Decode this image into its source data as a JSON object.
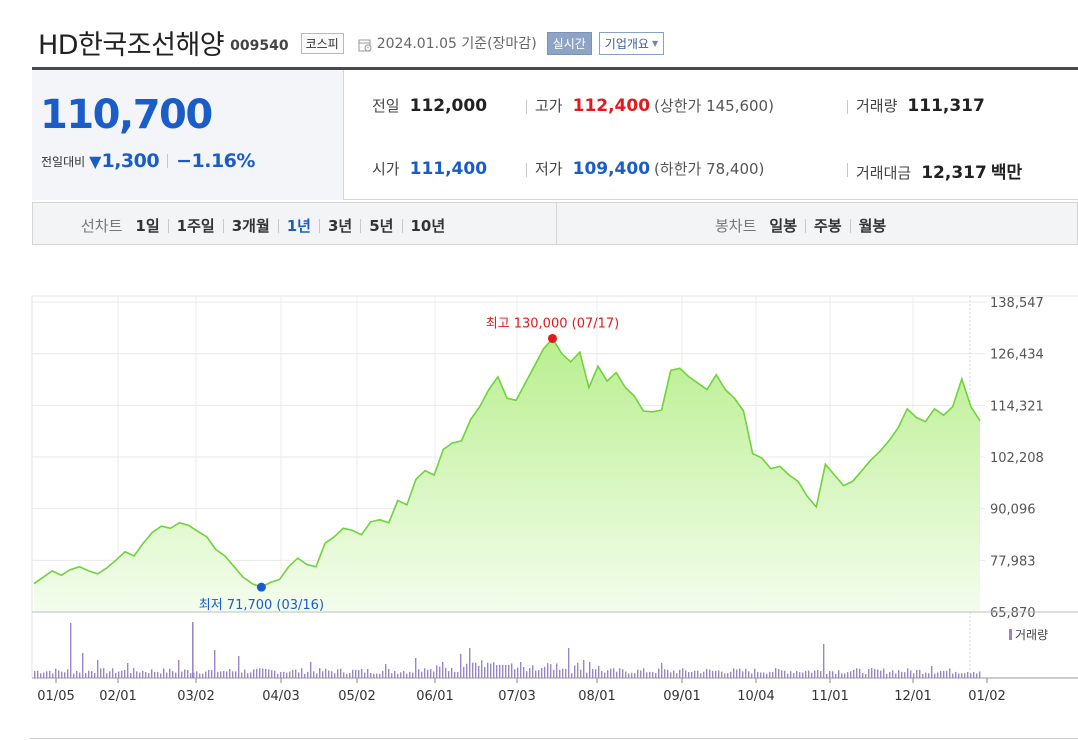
{
  "header": {
    "stock_name": "HD한국조선해양",
    "stock_code": "009540",
    "market": "코스피",
    "base_date": "2024.01.05 기준(장마감)",
    "realtime_label": "실시간",
    "company_info_label": "기업개요"
  },
  "price": {
    "current": "110,700",
    "change_label": "전일대비",
    "change_arrow": "▼",
    "change_value": "1,300",
    "change_rate": "−1.16%"
  },
  "stats": {
    "prev_close_label": "전일",
    "prev_close": "112,000",
    "high_label": "고가",
    "high": "112,400",
    "upper_limit": "(상한가 145,600)",
    "volume_label": "거래량",
    "volume": "111,317",
    "open_label": "시가",
    "open": "111,400",
    "low_label": "저가",
    "low": "109,400",
    "lower_limit": "(하한가 78,400)",
    "amount_label": "거래대금",
    "amount": "12,317",
    "amount_unit": "백만"
  },
  "tabs": {
    "line_label": "선차트",
    "line_items": [
      "1일",
      "1주일",
      "3개월",
      "1년",
      "3년",
      "5년",
      "10년"
    ],
    "active_index": 3,
    "candle_label": "봉차트",
    "candle_items": [
      "일봉",
      "주봉",
      "월봉"
    ]
  },
  "colors": {
    "line": "#6fd33a",
    "fill_top": "#b9ef8f",
    "fill_bottom": "#f4fdee",
    "accent_blue": "#1a5dc9",
    "accent_red": "#e21a1a",
    "volume_bar": "#9a86c6"
  },
  "chart_data": {
    "type": "area",
    "y_ticks": [
      "138,547",
      "126,434",
      "114,321",
      "102,208",
      "90,096",
      "77,983",
      "65,870"
    ],
    "ylim": [
      65870,
      138547
    ],
    "x_tick_labels": [
      "01/05",
      "02/01",
      "03/02",
      "04/03",
      "05/02",
      "06/01",
      "07/03",
      "08/01",
      "09/01",
      "10/04",
      "11/01",
      "12/01",
      "01/02"
    ],
    "high_annotation": "최고 130,000 (07/17)",
    "high_value": 130000,
    "low_annotation": "최저 71,700 (03/16)",
    "low_value": 71700,
    "volume_legend": "거래량",
    "price_series": [
      72500,
      74000,
      75500,
      74500,
      75800,
      76500,
      75500,
      74800,
      76200,
      78000,
      80000,
      79000,
      82000,
      84500,
      86000,
      85500,
      86800,
      86200,
      84800,
      83500,
      80500,
      79000,
      76500,
      74000,
      72500,
      71700,
      72800,
      73500,
      76500,
      78500,
      77000,
      76500,
      82000,
      83500,
      85500,
      85000,
      84000,
      87000,
      87500,
      86800,
      92000,
      91000,
      97000,
      99000,
      98000,
      104000,
      105500,
      106000,
      111000,
      114000,
      118000,
      121000,
      116000,
      115500,
      119500,
      123500,
      127500,
      130000,
      126500,
      124500,
      126800,
      118500,
      123500,
      120000,
      122000,
      118500,
      116500,
      113000,
      112800,
      113200,
      122500,
      123000,
      121000,
      119500,
      118000,
      121500,
      118000,
      116000,
      113000,
      103000,
      102000,
      99500,
      100000,
      98000,
      96500,
      93000,
      90500,
      100500,
      98000,
      95500,
      96500,
      99000,
      101500,
      103500,
      106000,
      109000,
      113500,
      111500,
      110500,
      113500,
      112000,
      114000,
      120500,
      114000,
      110700
    ]
  }
}
